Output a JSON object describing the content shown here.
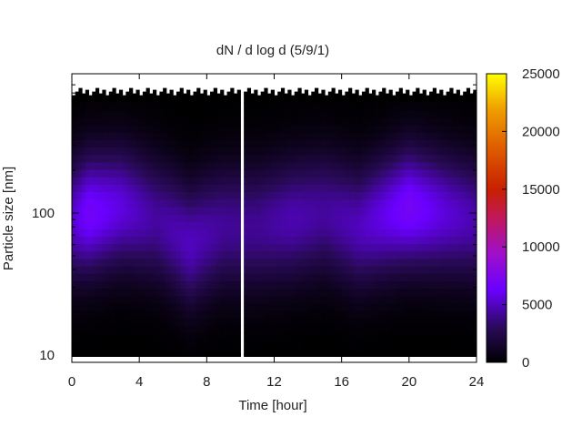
{
  "chart_data": {
    "type": "heatmap",
    "title": "dN / d log d (5/9/1)",
    "xlabel": "Time [hour]",
    "ylabel": "Particle size [nm]",
    "x_ticks": [
      0,
      4,
      8,
      12,
      16,
      20,
      24
    ],
    "xlim": [
      0,
      24
    ],
    "y_scale": "log",
    "y_ticks": [
      10,
      100
    ],
    "ylim": [
      9,
      800
    ],
    "colorbar": {
      "label": "",
      "ticks": [
        0,
        5000,
        10000,
        15000,
        20000,
        25000
      ],
      "range": [
        0,
        25000
      ],
      "palette": "black-blue-purple-red-orange-yellow"
    },
    "data_gap": [
      10.0,
      10.3
    ],
    "measured_size_range_nm": [
      10,
      600
    ],
    "grid": false,
    "intensity_profile": [
      {
        "time": 0,
        "peak_nm": 90,
        "value": 5200
      },
      {
        "time": 1,
        "peak_nm": 100,
        "value": 6800
      },
      {
        "time": 3,
        "peak_nm": 110,
        "value": 5600
      },
      {
        "time": 5,
        "peak_nm": 90,
        "value": 4300
      },
      {
        "time": 7,
        "peak_nm": 60,
        "value": 5000
      },
      {
        "time": 9,
        "peak_nm": 80,
        "value": 4200
      },
      {
        "time": 11,
        "peak_nm": 80,
        "value": 4100
      },
      {
        "time": 13,
        "peak_nm": 90,
        "value": 4700
      },
      {
        "time": 15,
        "peak_nm": 100,
        "value": 4300
      },
      {
        "time": 17,
        "peak_nm": 80,
        "value": 4900
      },
      {
        "time": 19,
        "peak_nm": 100,
        "value": 6200
      },
      {
        "time": 20,
        "peak_nm": 110,
        "value": 7000
      },
      {
        "time": 22,
        "peak_nm": 100,
        "value": 5600
      },
      {
        "time": 24,
        "peak_nm": 90,
        "value": 4600
      }
    ]
  }
}
